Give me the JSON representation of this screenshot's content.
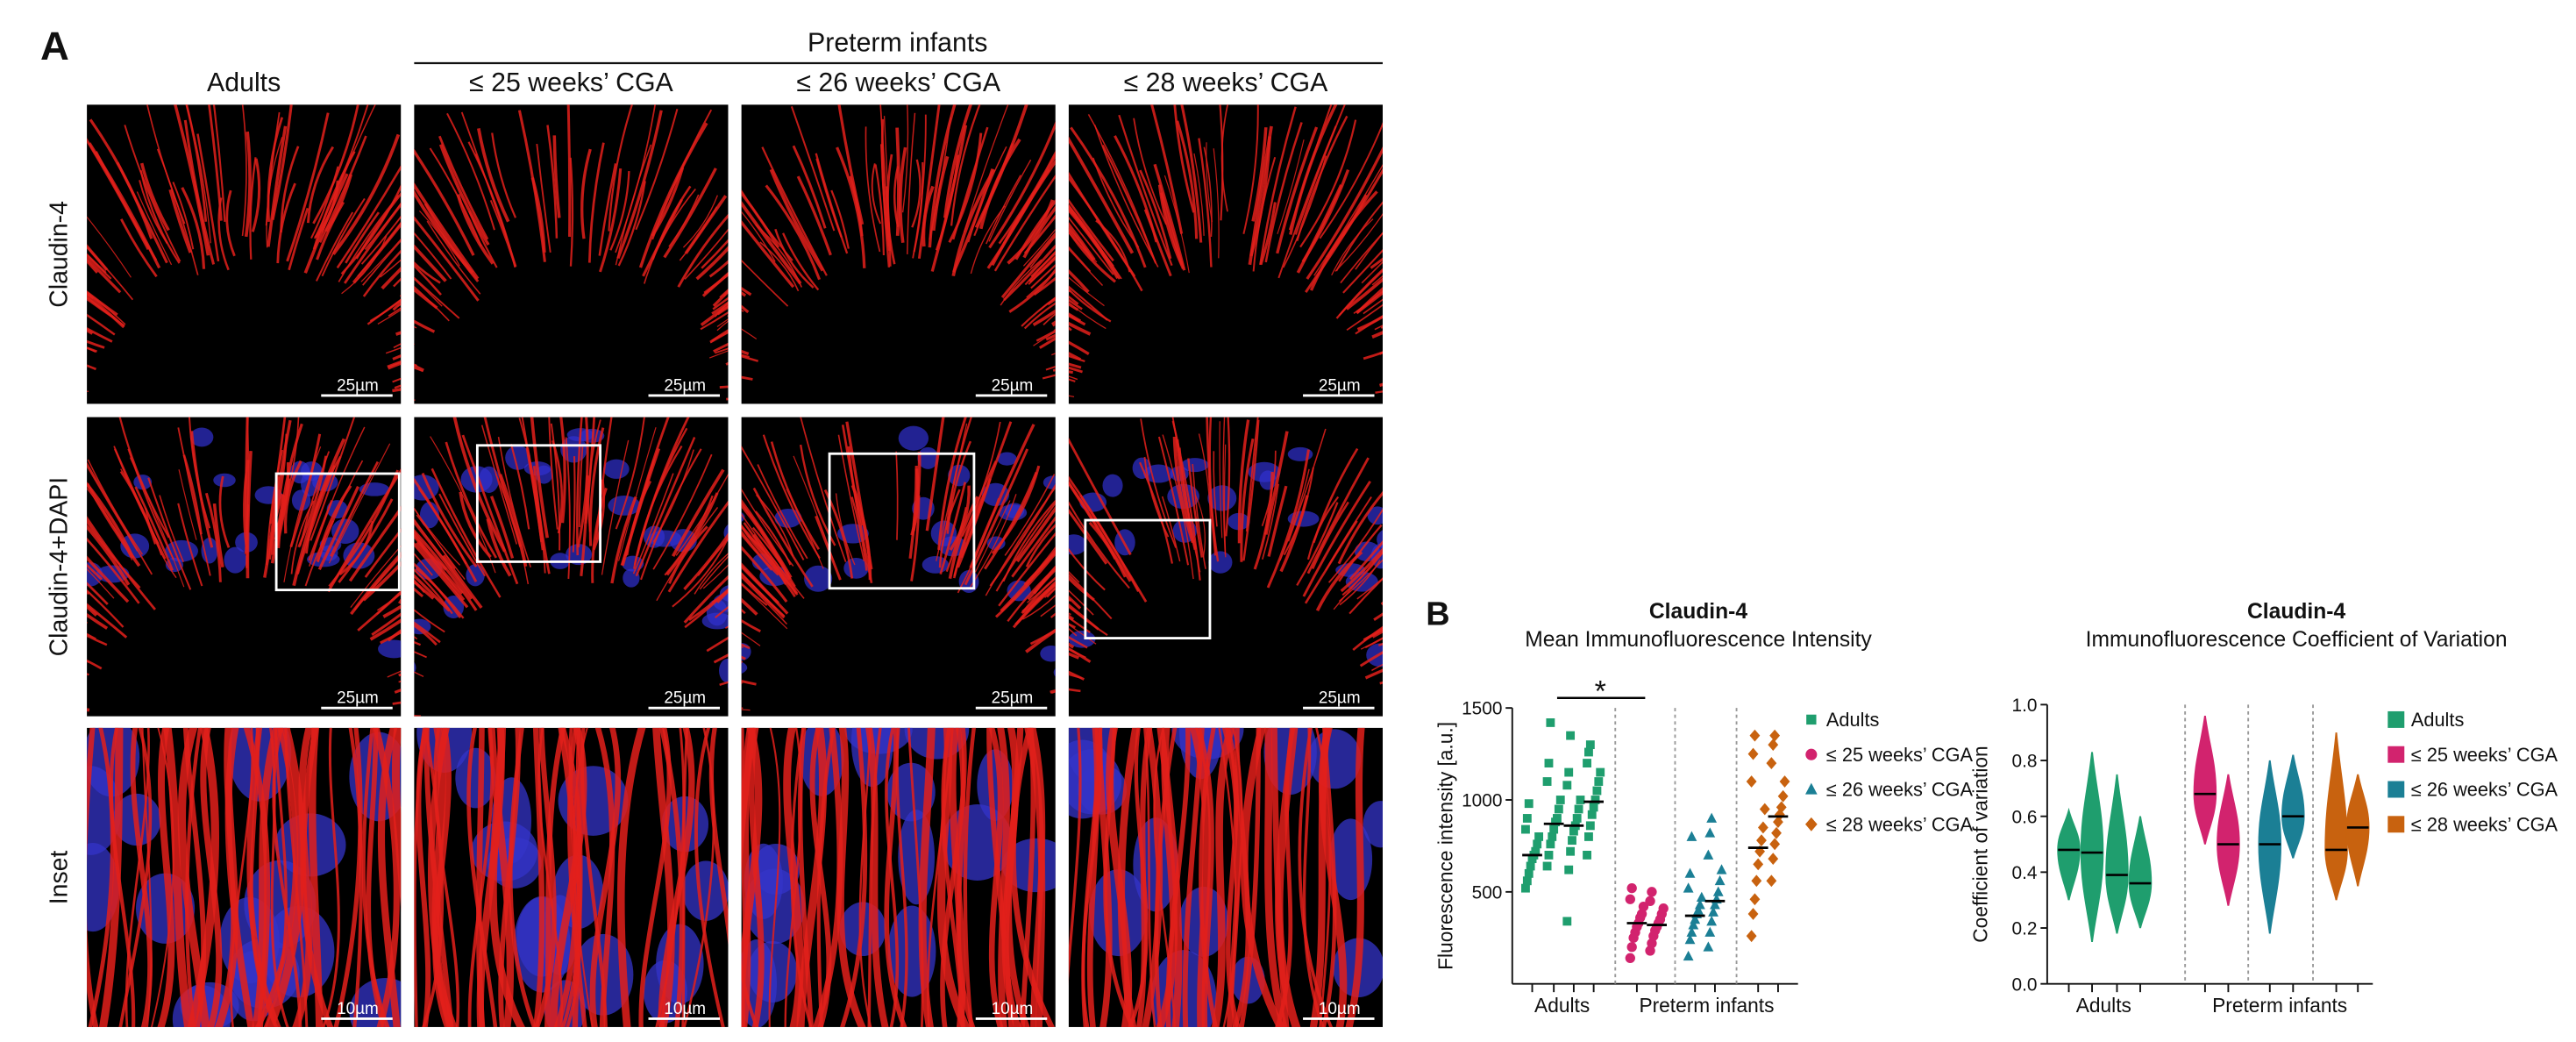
{
  "panel_a": {
    "label": "A",
    "group_label": "Preterm infants",
    "columns": [
      "Adults",
      "≤ 25 weeks’ CGA",
      "≤ 26 weeks’ CGA",
      "≤ 28 weeks’ CGA"
    ],
    "rows": [
      "Claudin-4",
      "Claudin-4+DAPI",
      "Inset"
    ],
    "scale_bars": [
      [
        "25µm",
        "25µm",
        "25µm",
        "25µm"
      ],
      [
        "25µm",
        "25µm",
        "25µm",
        "25µm"
      ],
      [
        "10µm",
        "10µm",
        "10µm",
        "10µm"
      ]
    ]
  },
  "panel_b_label": "B",
  "chart_data": [
    {
      "type": "scatter",
      "title": "Claudin-4",
      "subtitle": "Mean Immunofluorescence Intensity",
      "ylabel": "Fluorescence intensity [a.u.]",
      "groups": [
        "Adults",
        "Preterm infants"
      ],
      "ylim": [
        0,
        1500
      ],
      "yticks": [
        500,
        1000,
        1500
      ],
      "significance": "*",
      "series": [
        {
          "name": "Adults",
          "color": "#1f9e6e",
          "marker": "square",
          "columns": [
            {
              "values": [
                520,
                560,
                600,
                640,
                680,
                700,
                720,
                760,
                800,
                840,
                900,
                980
              ],
              "mean": 700
            },
            {
              "values": [
                640,
                700,
                760,
                800,
                840,
                880,
                900,
                950,
                1000,
                1100,
                1200,
                1420
              ],
              "mean": 870
            },
            {
              "values": [
                340,
                620,
                720,
                780,
                830,
                860,
                900,
                950,
                1000,
                1080,
                1150,
                1350
              ],
              "mean": 860
            },
            {
              "values": [
                700,
                800,
                860,
                920,
                960,
                1000,
                1050,
                1100,
                1150,
                1200,
                1260,
                1300
              ],
              "mean": 990
            }
          ]
        },
        {
          "name": "≤ 25 weeks’ CGA",
          "color": "#d2236e",
          "marker": "circle",
          "columns": [
            {
              "values": [
                140,
                200,
                250,
                280,
                310,
                330,
                360,
                380,
                420,
                460,
                520
              ],
              "mean": 330
            },
            {
              "values": [
                180,
                220,
                260,
                290,
                310,
                330,
                350,
                380,
                410,
                450,
                500
              ],
              "mean": 320
            }
          ]
        },
        {
          "name": "≤ 26 weeks’ CGA",
          "color": "#1b7f95",
          "marker": "triangle",
          "columns": [
            {
              "values": [
                150,
                240,
                280,
                320,
                350,
                380,
                400,
                430,
                470,
                520,
                600,
                800
              ],
              "mean": 370
            },
            {
              "values": [
                200,
                280,
                340,
                390,
                430,
                460,
                500,
                560,
                620,
                700,
                820,
                900
              ],
              "mean": 450
            }
          ]
        },
        {
          "name": "≤ 28 weeks’ CGA",
          "color": "#c8620f",
          "marker": "diamond",
          "columns": [
            {
              "values": [
                260,
                380,
                460,
                560,
                650,
                720,
                780,
                850,
                950,
                1100,
                1250,
                1350
              ],
              "mean": 740
            },
            {
              "values": [
                560,
                680,
                760,
                820,
                880,
                920,
                960,
                1020,
                1100,
                1200,
                1300,
                1350
              ],
              "mean": 910
            }
          ]
        }
      ]
    },
    {
      "type": "violin",
      "title": "Claudin-4",
      "subtitle": "Immunofluorescence Coefficient of Variation",
      "ylabel": "Coefficient of variation",
      "groups": [
        "Adults",
        "Preterm infants"
      ],
      "ylim": [
        0,
        1
      ],
      "yticks": [
        {
          "value": 0,
          "label": "0.0"
        },
        0.2,
        0.4,
        0.6,
        0.8,
        {
          "value": 1,
          "label": "1.0"
        }
      ],
      "series": [
        {
          "name": "Adults",
          "color": "#1f9e6e",
          "violins": [
            {
              "min": 0.3,
              "median": 0.48,
              "max": 0.62
            },
            {
              "min": 0.15,
              "median": 0.47,
              "max": 0.83
            },
            {
              "min": 0.18,
              "median": 0.39,
              "max": 0.75
            },
            {
              "min": 0.2,
              "median": 0.36,
              "max": 0.6
            }
          ]
        },
        {
          "name": "≤ 25 weeks’ CGA",
          "color": "#d2236e",
          "violins": [
            {
              "min": 0.5,
              "median": 0.68,
              "max": 0.96
            },
            {
              "min": 0.28,
              "median": 0.5,
              "max": 0.75
            }
          ]
        },
        {
          "name": "≤ 26 weeks’ CGA",
          "color": "#1b7f95",
          "violins": [
            {
              "min": 0.18,
              "median": 0.5,
              "max": 0.8
            },
            {
              "min": 0.45,
              "median": 0.6,
              "max": 0.82
            }
          ]
        },
        {
          "name": "≤ 28 weeks’ CGA",
          "color": "#c8620f",
          "violins": [
            {
              "min": 0.3,
              "median": 0.48,
              "max": 0.9
            },
            {
              "min": 0.35,
              "median": 0.56,
              "max": 0.75
            }
          ]
        }
      ]
    }
  ]
}
